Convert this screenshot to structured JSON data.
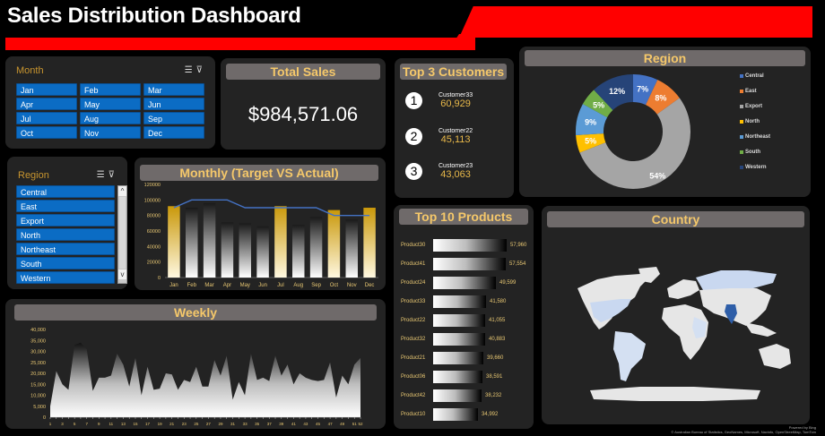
{
  "header": {
    "title": "Sales Distribution Dashboard"
  },
  "colors": {
    "accent_red": "#ff0000",
    "panel_bg": "#232323",
    "title_gold": "#f5c86a",
    "chip_blue": "#0b6cc4"
  },
  "month_slicer": {
    "label": "Month",
    "icons": [
      "multi-select-icon",
      "clear-filter-icon"
    ],
    "items": [
      "Jan",
      "Feb",
      "Mar",
      "Apr",
      "May",
      "Jun",
      "Jul",
      "Aug",
      "Sep",
      "Oct",
      "Nov",
      "Dec"
    ]
  },
  "region_slicer": {
    "label": "Region",
    "icons": [
      "multi-select-icon",
      "clear-filter-icon"
    ],
    "items": [
      "Central",
      "East",
      "Export",
      "North",
      "Northeast",
      "South",
      "Western"
    ],
    "scroll_up": "^",
    "scroll_down": "v"
  },
  "total_sales": {
    "title": "Total Sales",
    "value": "$984,571.06"
  },
  "top_customers": {
    "title": "Top 3 Customers",
    "items": [
      {
        "rank": "1",
        "name": "Customer33",
        "value": "60,929"
      },
      {
        "rank": "2",
        "name": "Customer22",
        "value": "45,113"
      },
      {
        "rank": "3",
        "name": "Customer23",
        "value": "43,063"
      }
    ]
  },
  "region_chart": {
    "title": "Region",
    "legend": [
      {
        "label": "Central",
        "color": "#4472c4"
      },
      {
        "label": "East",
        "color": "#ed7d31"
      },
      {
        "label": "Export",
        "color": "#a5a5a5"
      },
      {
        "label": "North",
        "color": "#ffc000"
      },
      {
        "label": "Northeast",
        "color": "#5b9bd5"
      },
      {
        "label": "South",
        "color": "#70ad47"
      },
      {
        "label": "Western",
        "color": "#264478"
      }
    ]
  },
  "monthly_chart": {
    "title": "Monthly (Target VS Actual)"
  },
  "top_products": {
    "title": "Top 10 Products",
    "items": [
      {
        "name": "Product30",
        "value": "57,960"
      },
      {
        "name": "Product41",
        "value": "57,554"
      },
      {
        "name": "Product24",
        "value": "49,599"
      },
      {
        "name": "Product33",
        "value": "41,580"
      },
      {
        "name": "Product22",
        "value": "41,055"
      },
      {
        "name": "Product32",
        "value": "40,883"
      },
      {
        "name": "Product21",
        "value": "39,660"
      },
      {
        "name": "Product06",
        "value": "38,591"
      },
      {
        "name": "Product42",
        "value": "38,232"
      },
      {
        "name": "Product10",
        "value": "34,992"
      }
    ]
  },
  "country_map": {
    "title": "Country",
    "attribution_line1": "Powered by Bing",
    "attribution_line2": "© Australian Bureau of Statistics, GeoNames, Microsoft, Navinfo, OpenStreetMap, TomTom"
  },
  "weekly_chart": {
    "title": "Weekly"
  },
  "chart_data": [
    {
      "type": "bar",
      "title": "Monthly (Target VS Actual)",
      "categories": [
        "Jan",
        "Feb",
        "Mar",
        "Apr",
        "May",
        "Jun",
        "Jul",
        "Aug",
        "Sep",
        "Oct",
        "Nov",
        "Dec"
      ],
      "series": [
        {
          "name": "Actual",
          "values": [
            92000,
            90000,
            96000,
            71000,
            70000,
            66000,
            92000,
            68000,
            78000,
            87000,
            75000,
            90000
          ]
        },
        {
          "name": "Target",
          "type": "line",
          "values": [
            90000,
            100000,
            100000,
            100000,
            90000,
            90000,
            90000,
            90000,
            90000,
            80000,
            80000,
            80000
          ]
        }
      ],
      "highlighted": [
        "Jan",
        "Jul",
        "Oct",
        "Dec"
      ],
      "yticks": [
        0,
        20000,
        40000,
        60000,
        80000,
        100000,
        120000
      ],
      "ylim": [
        0,
        120000
      ]
    },
    {
      "type": "pie",
      "title": "Region",
      "categories": [
        "Central",
        "East",
        "Export",
        "North",
        "Northeast",
        "South",
        "Western"
      ],
      "values": [
        7,
        8,
        54,
        5,
        9,
        5,
        12
      ],
      "labels": [
        "7%",
        "8%",
        "54%",
        "5%",
        "9%",
        "5%",
        "12%"
      ],
      "legend_position": "right"
    },
    {
      "type": "bar",
      "title": "Top 10 Products",
      "categories": [
        "Product30",
        "Product41",
        "Product24",
        "Product33",
        "Product22",
        "Product32",
        "Product21",
        "Product06",
        "Product42",
        "Product10"
      ],
      "values": [
        57960,
        57554,
        49599,
        41580,
        41055,
        40883,
        39660,
        38591,
        38232,
        34992
      ],
      "orientation": "horizontal"
    },
    {
      "type": "area",
      "title": "Weekly",
      "x": [
        1,
        2,
        3,
        4,
        5,
        6,
        7,
        8,
        9,
        10,
        11,
        12,
        13,
        14,
        15,
        16,
        17,
        18,
        19,
        20,
        21,
        22,
        23,
        24,
        25,
        26,
        27,
        28,
        29,
        30,
        31,
        32,
        33,
        34,
        35,
        36,
        37,
        38,
        39,
        40,
        41,
        42,
        43,
        44,
        45,
        46,
        47,
        48,
        49,
        50,
        51,
        52
      ],
      "xticks": [
        1,
        3,
        5,
        7,
        9,
        11,
        13,
        15,
        17,
        19,
        21,
        23,
        25,
        27,
        29,
        31,
        33,
        35,
        37,
        39,
        41,
        43,
        45,
        47,
        49,
        51,
        52
      ],
      "values": [
        5000,
        21000,
        15000,
        12500,
        33000,
        34000,
        31000,
        12000,
        18000,
        18000,
        19000,
        29000,
        24000,
        14000,
        27000,
        10000,
        23000,
        12500,
        13000,
        20000,
        19500,
        12500,
        17000,
        16000,
        23000,
        14000,
        14000,
        26000,
        19000,
        28000,
        8000,
        16000,
        10000,
        29000,
        17000,
        18000,
        16500,
        28000,
        19000,
        24000,
        15000,
        20000,
        18000,
        17000,
        16500,
        17000,
        25000,
        9000,
        19000,
        15000,
        24000,
        27000
      ],
      "yticks": [
        0,
        5000,
        10000,
        15000,
        20000,
        25000,
        30000,
        35000,
        40000
      ],
      "ylim": [
        0,
        40000
      ]
    },
    {
      "type": "heatmap",
      "title": "Country",
      "note": "World map; India shaded dark blue (highest), USA/Canada/Brazil/Russia/East Africa light blue"
    }
  ]
}
